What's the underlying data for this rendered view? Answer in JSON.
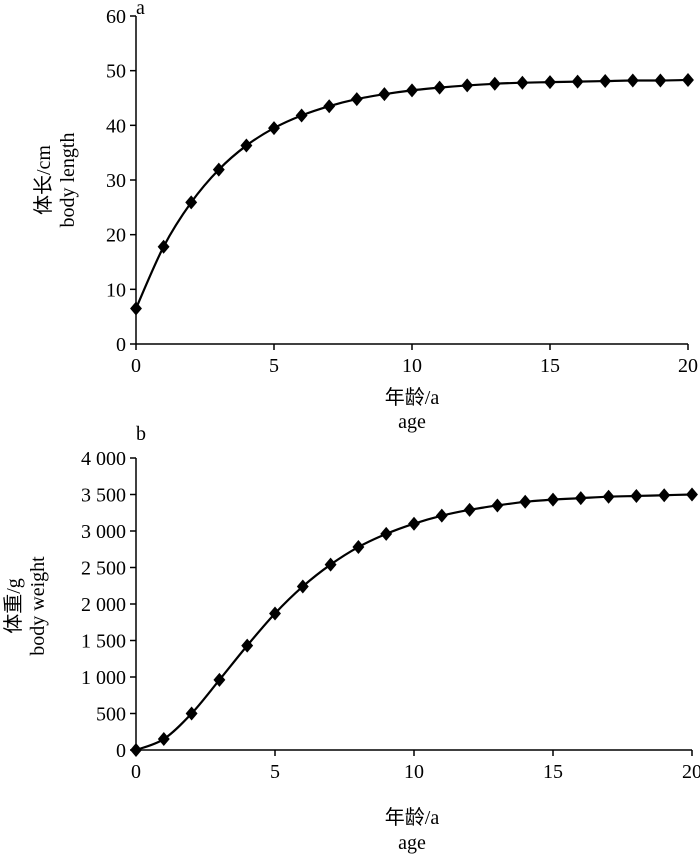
{
  "chart_data": [
    {
      "type": "line",
      "panel": "a",
      "ylabel_cn": "体长/cm",
      "ylabel_en": "body length",
      "xlabel_cn": "年龄/a",
      "xlabel_en": "age",
      "xlim": [
        0,
        20
      ],
      "ylim": [
        0,
        60
      ],
      "x_ticks": [
        0,
        5,
        10,
        15,
        20
      ],
      "y_ticks": [
        0,
        10,
        20,
        30,
        40,
        50,
        60
      ],
      "y_tick_labels": [
        "0",
        "10",
        "20",
        "30",
        "40",
        "50",
        "60"
      ],
      "x": [
        0,
        1,
        2,
        3,
        4,
        5,
        6,
        7,
        8,
        9,
        10,
        11,
        12,
        13,
        14,
        15,
        16,
        17,
        18,
        19,
        20
      ],
      "y": [
        6.5,
        17.8,
        25.9,
        31.9,
        36.3,
        39.5,
        41.8,
        43.5,
        44.8,
        45.7,
        46.4,
        46.9,
        47.3,
        47.6,
        47.8,
        47.9,
        48.0,
        48.1,
        48.2,
        48.2,
        48.3
      ],
      "marker": "diamond",
      "grid": false
    },
    {
      "type": "line",
      "panel": "b",
      "ylabel_cn": "体重/g",
      "ylabel_en": "body weight",
      "xlabel_cn": "年龄/a",
      "xlabel_en": "age",
      "xlim": [
        0,
        20
      ],
      "ylim": [
        0,
        4000
      ],
      "x_ticks": [
        0,
        5,
        10,
        15,
        20
      ],
      "y_ticks": [
        0,
        500,
        1000,
        1500,
        2000,
        2500,
        3000,
        3500,
        4000
      ],
      "y_tick_labels": [
        "0",
        "500",
        "1 000",
        "1 500",
        "2 000",
        "2 500",
        "3 000",
        "3 500",
        "4 000"
      ],
      "x": [
        0,
        1,
        2,
        3,
        4,
        5,
        6,
        7,
        8,
        9,
        10,
        11,
        12,
        13,
        14,
        15,
        16,
        17,
        18,
        19,
        20
      ],
      "y": [
        0,
        150,
        500,
        960,
        1430,
        1870,
        2240,
        2540,
        2780,
        2960,
        3100,
        3210,
        3290,
        3350,
        3400,
        3430,
        3450,
        3470,
        3480,
        3490,
        3500
      ],
      "marker": "diamond",
      "grid": false
    }
  ]
}
